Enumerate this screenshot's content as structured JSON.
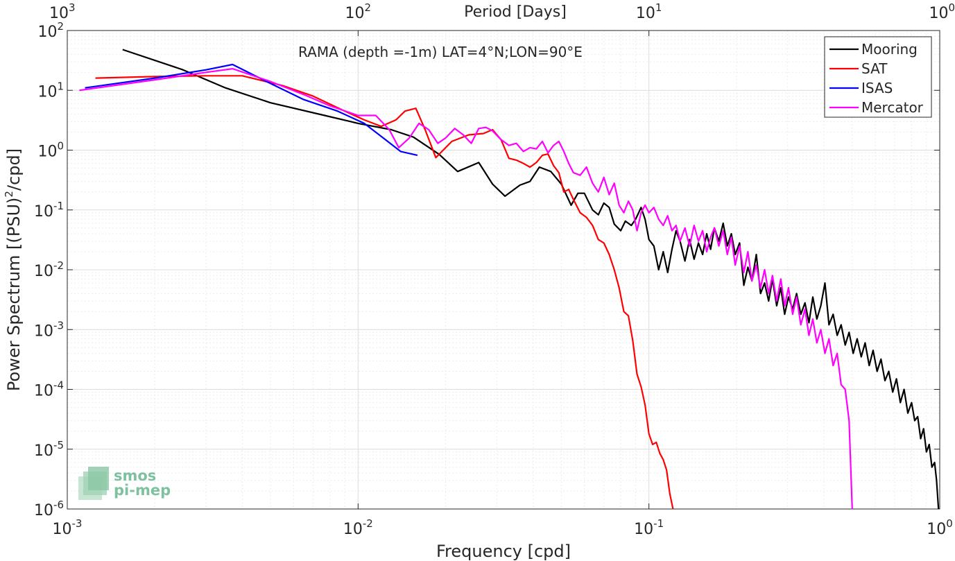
{
  "chart_data": {
    "type": "line",
    "title": "",
    "annotation": "RAMA (depth =-1m) LAT=4°N;LON=90°E",
    "xlabel": "Frequency [cpd]",
    "ylabel": "Power Spectrum [(PSU)",
    "ylabel_sup": "2",
    "ylabel_suffix": "/cpd]",
    "x2label": "Period [Days]",
    "xscale": "log",
    "yscale": "log",
    "xlim": [
      0.001,
      1
    ],
    "ylim": [
      1e-06,
      100
    ],
    "grid": true,
    "legend_position": "top-right",
    "x_ticks": [
      {
        "value": 0.001,
        "base": "10",
        "exp": "-3"
      },
      {
        "value": 0.01,
        "base": "10",
        "exp": "-2"
      },
      {
        "value": 0.1,
        "base": "10",
        "exp": "-1"
      },
      {
        "value": 1,
        "base": "10",
        "exp": "0"
      }
    ],
    "x2_ticks": [
      {
        "value": 0.001,
        "base": "10",
        "exp": "3"
      },
      {
        "value": 0.01,
        "base": "10",
        "exp": "2"
      },
      {
        "value": 0.1,
        "base": "10",
        "exp": "1"
      },
      {
        "value": 1,
        "base": "10",
        "exp": "0"
      }
    ],
    "y_ticks": [
      {
        "value": 100,
        "base": "10",
        "exp": "2"
      },
      {
        "value": 10,
        "base": "10",
        "exp": "1"
      },
      {
        "value": 1,
        "base": "10",
        "exp": "0"
      },
      {
        "value": 0.1,
        "base": "10",
        "exp": "-1"
      },
      {
        "value": 0.01,
        "base": "10",
        "exp": "-2"
      },
      {
        "value": 0.001,
        "base": "10",
        "exp": "-3"
      },
      {
        "value": 0.0001,
        "base": "10",
        "exp": "-4"
      },
      {
        "value": 1e-05,
        "base": "10",
        "exp": "-5"
      },
      {
        "value": 1e-06,
        "base": "10",
        "exp": "-6"
      }
    ],
    "series": [
      {
        "name": "Mooring",
        "color": "#000000",
        "x": [
          0.00155,
          0.0025,
          0.0035,
          0.005,
          0.0075,
          0.01,
          0.013,
          0.0155,
          0.019,
          0.022,
          0.026,
          0.029,
          0.032,
          0.036,
          0.039,
          0.042,
          0.046,
          0.05,
          0.054,
          0.057,
          0.06,
          0.064,
          0.067,
          0.07,
          0.073,
          0.076,
          0.08,
          0.083,
          0.087,
          0.09,
          0.094,
          0.097,
          0.1,
          0.104,
          0.108,
          0.112,
          0.116,
          0.12,
          0.124,
          0.128,
          0.133,
          0.138,
          0.143,
          0.148,
          0.153,
          0.158,
          0.163,
          0.168,
          0.174,
          0.18,
          0.186,
          0.192,
          0.198,
          0.205,
          0.212,
          0.219,
          0.226,
          0.234,
          0.242,
          0.25,
          0.258,
          0.266,
          0.275,
          0.284,
          0.293,
          0.302,
          0.312,
          0.322,
          0.333,
          0.344,
          0.355,
          0.366,
          0.378,
          0.39,
          0.403,
          0.416,
          0.43,
          0.444,
          0.458,
          0.473,
          0.488,
          0.504,
          0.52,
          0.537,
          0.554,
          0.572,
          0.59,
          0.609,
          0.628,
          0.648,
          0.668,
          0.689,
          0.71,
          0.732,
          0.754,
          0.777,
          0.8,
          0.82,
          0.84,
          0.86,
          0.88,
          0.9,
          0.92,
          0.94,
          0.96,
          0.975,
          0.99
        ],
        "y": [
          48,
          22,
          11,
          6.2,
          3.9,
          2.8,
          2.2,
          1.65,
          0.85,
          0.44,
          0.62,
          0.27,
          0.17,
          0.26,
          0.3,
          0.52,
          0.44,
          0.27,
          0.12,
          0.19,
          0.19,
          0.1,
          0.083,
          0.13,
          0.11,
          0.058,
          0.045,
          0.065,
          0.055,
          0.07,
          0.11,
          0.07,
          0.032,
          0.025,
          0.01,
          0.02,
          0.009,
          0.022,
          0.045,
          0.03,
          0.014,
          0.032,
          0.015,
          0.028,
          0.018,
          0.04,
          0.022,
          0.05,
          0.03,
          0.06,
          0.025,
          0.04,
          0.018,
          0.028,
          0.0055,
          0.011,
          0.0065,
          0.018,
          0.004,
          0.006,
          0.003,
          0.007,
          0.0025,
          0.005,
          0.0018,
          0.0035,
          0.0022,
          0.004,
          0.0018,
          0.0028,
          0.0013,
          0.0035,
          0.0015,
          0.0025,
          0.006,
          0.0012,
          0.0018,
          0.0008,
          0.0012,
          0.00055,
          0.0009,
          0.0004,
          0.0007,
          0.00035,
          0.0006,
          0.00025,
          0.00045,
          0.0002,
          0.00032,
          0.00014,
          0.0002,
          9e-05,
          0.00015,
          6e-05,
          0.0001,
          4e-05,
          6e-05,
          3e-05,
          3.5e-05,
          1.5e-05,
          2.2e-05,
          9e-06,
          1.2e-05,
          5e-06,
          6e-06,
          3e-06,
          1e-06
        ]
      },
      {
        "name": "SAT",
        "color": "#ff0000",
        "x": [
          0.00125,
          0.002,
          0.003,
          0.004,
          0.0055,
          0.007,
          0.009,
          0.0105,
          0.012,
          0.0135,
          0.0145,
          0.0158,
          0.017,
          0.0185,
          0.021,
          0.024,
          0.027,
          0.029,
          0.031,
          0.033,
          0.035,
          0.037,
          0.039,
          0.041,
          0.043,
          0.045,
          0.047,
          0.049,
          0.051,
          0.053,
          0.055,
          0.058,
          0.061,
          0.064,
          0.067,
          0.07,
          0.073,
          0.076,
          0.079,
          0.082,
          0.085,
          0.088,
          0.091,
          0.094,
          0.097,
          0.1,
          0.103,
          0.106,
          0.109,
          0.112,
          0.115,
          0.118,
          0.121
        ],
        "y": [
          16,
          17,
          17.5,
          17.5,
          12,
          8,
          4.5,
          3.2,
          2.5,
          3.2,
          4.5,
          5,
          2.2,
          0.75,
          1.4,
          1.8,
          1.9,
          2.2,
          1.5,
          0.73,
          0.68,
          0.6,
          0.52,
          0.62,
          0.82,
          0.86,
          0.55,
          0.42,
          0.2,
          0.22,
          0.15,
          0.09,
          0.075,
          0.055,
          0.032,
          0.028,
          0.018,
          0.01,
          0.005,
          0.002,
          0.0017,
          0.00065,
          0.00018,
          0.00011,
          5.5e-05,
          1.8e-05,
          1.2e-05,
          1.3e-05,
          8.5e-06,
          6.7e-06,
          4.5e-06,
          1.8e-06,
          1e-06
        ]
      },
      {
        "name": "ISAS",
        "color": "#0000ff",
        "x": [
          0.00115,
          0.002,
          0.003,
          0.0037,
          0.005,
          0.0065,
          0.0085,
          0.0105,
          0.0122,
          0.014,
          0.016
        ],
        "y": [
          11,
          16,
          22,
          27,
          13,
          7,
          4.5,
          2.8,
          1.6,
          0.95,
          0.82
        ]
      },
      {
        "name": "Mercator",
        "color": "#ff00ff",
        "x": [
          0.0011,
          0.002,
          0.003,
          0.0037,
          0.005,
          0.0065,
          0.008,
          0.01,
          0.0115,
          0.0128,
          0.0138,
          0.015,
          0.0162,
          0.0175,
          0.0188,
          0.02,
          0.0215,
          0.023,
          0.0245,
          0.026,
          0.0275,
          0.029,
          0.031,
          0.033,
          0.035,
          0.037,
          0.039,
          0.041,
          0.043,
          0.045,
          0.047,
          0.049,
          0.051,
          0.053,
          0.055,
          0.058,
          0.061,
          0.064,
          0.067,
          0.07,
          0.073,
          0.076,
          0.079,
          0.082,
          0.085,
          0.088,
          0.091,
          0.094,
          0.097,
          0.1,
          0.104,
          0.108,
          0.112,
          0.116,
          0.12,
          0.124,
          0.128,
          0.133,
          0.138,
          0.143,
          0.148,
          0.153,
          0.158,
          0.163,
          0.168,
          0.174,
          0.18,
          0.186,
          0.192,
          0.198,
          0.205,
          0.212,
          0.219,
          0.226,
          0.234,
          0.242,
          0.25,
          0.258,
          0.266,
          0.275,
          0.284,
          0.293,
          0.302,
          0.312,
          0.322,
          0.333,
          0.344,
          0.355,
          0.366,
          0.378,
          0.39,
          0.403,
          0.416,
          0.43,
          0.444,
          0.458,
          0.473,
          0.488,
          0.5
        ],
        "y": [
          10,
          15,
          20,
          23,
          14,
          8.5,
          5.5,
          3.8,
          3.8,
          2.2,
          1.1,
          1.6,
          2.8,
          2.2,
          1.3,
          1.6,
          2.3,
          1.8,
          1.3,
          2.3,
          2.4,
          2.1,
          1.5,
          1.2,
          1.3,
          0.95,
          1.1,
          1.05,
          1.4,
          0.9,
          1.2,
          1.4,
          0.95,
          0.6,
          0.42,
          0.38,
          0.52,
          0.28,
          0.2,
          0.35,
          0.18,
          0.28,
          0.12,
          0.09,
          0.14,
          0.1,
          0.045,
          0.09,
          0.12,
          0.09,
          0.11,
          0.07,
          0.055,
          0.08,
          0.045,
          0.055,
          0.03,
          0.05,
          0.025,
          0.055,
          0.03,
          0.045,
          0.02,
          0.035,
          0.05,
          0.025,
          0.045,
          0.018,
          0.035,
          0.012,
          0.025,
          0.009,
          0.02,
          0.0065,
          0.012,
          0.005,
          0.01,
          0.004,
          0.008,
          0.003,
          0.007,
          0.0025,
          0.005,
          0.0018,
          0.0035,
          0.0012,
          0.0022,
          0.0008,
          0.0015,
          0.0006,
          0.001,
          0.0004,
          0.0007,
          0.00025,
          0.0004,
          0.00012,
          0.0001,
          3e-05,
          1e-06
        ]
      }
    ]
  },
  "logo": {
    "line1": "smos",
    "line2": "pi-mep"
  }
}
